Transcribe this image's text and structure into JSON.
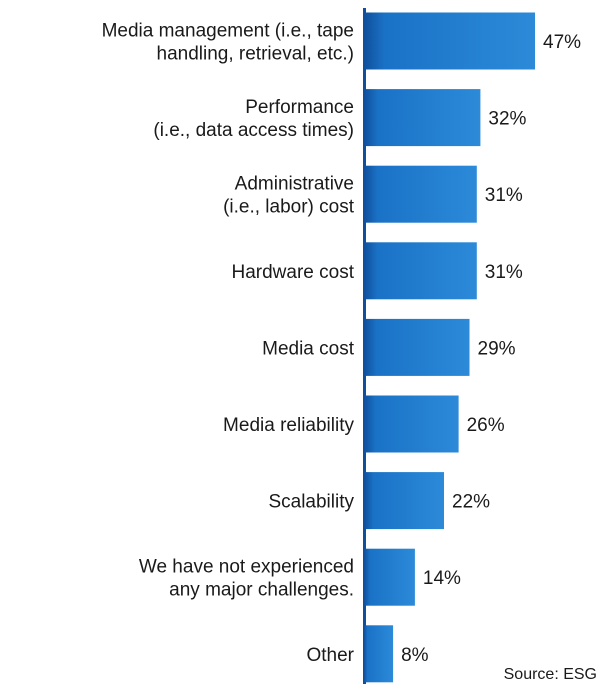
{
  "chart_data": {
    "type": "bar",
    "orientation": "horizontal",
    "categories": [
      [
        "Media management (i.e., tape",
        "handling, retrieval, etc.)"
      ],
      [
        "Performance",
        "(i.e., data access times)"
      ],
      [
        "Administrative",
        "(i.e., labor) cost"
      ],
      [
        "Hardware cost"
      ],
      [
        "Media cost"
      ],
      [
        "Media reliability"
      ],
      [
        "Scalability"
      ],
      [
        "We have not experienced",
        "any major challenges."
      ],
      [
        "Other"
      ]
    ],
    "values": [
      47,
      32,
      31,
      31,
      29,
      26,
      22,
      14,
      8
    ],
    "value_labels": [
      "47%",
      "32%",
      "31%",
      "31%",
      "29%",
      "26%",
      "22%",
      "14%",
      "8%"
    ],
    "xlim": [
      0,
      47
    ],
    "grid": false,
    "legend": "none",
    "bar_color_dark": "#0f4f9c",
    "bar_color_mid": "#1a72c6",
    "bar_color_light": "#2c8ad9",
    "source": "Source: ESG"
  }
}
